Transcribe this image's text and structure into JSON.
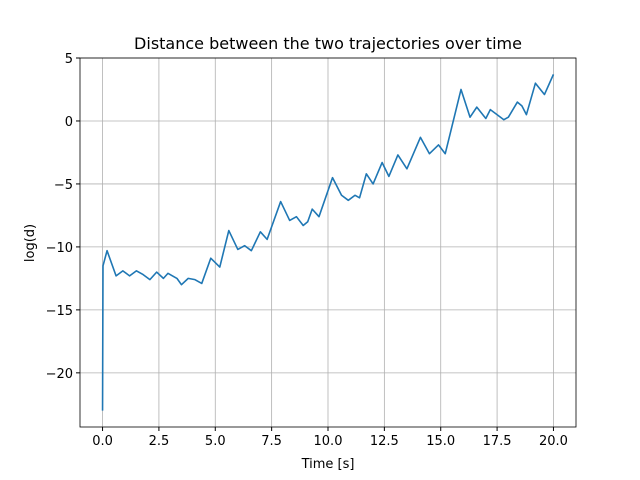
{
  "chart_data": {
    "type": "line",
    "title": "Distance between the two trajectories over time",
    "xlabel": "Time [s]",
    "ylabel": "log(d)",
    "x": [
      0,
      0.02,
      0.2,
      0.6,
      0.9,
      1.2,
      1.5,
      1.8,
      2.1,
      2.4,
      2.7,
      2.9,
      3.3,
      3.5,
      3.8,
      4.1,
      4.4,
      4.8,
      5.2,
      5.6,
      6.0,
      6.3,
      6.6,
      7.0,
      7.3,
      7.9,
      8.3,
      8.6,
      8.9,
      9.1,
      9.3,
      9.6,
      10.2,
      10.6,
      10.9,
      11.2,
      11.4,
      11.7,
      12.0,
      12.4,
      12.7,
      13.1,
      13.5,
      14.1,
      14.5,
      14.9,
      15.2,
      15.9,
      16.3,
      16.6,
      17.0,
      17.2,
      17.8,
      18.0,
      18.4,
      18.6,
      18.8,
      19.2,
      19.6,
      20.0
    ],
    "series": [
      {
        "color": "#1f77b4",
        "values": [
          -23,
          -11.5,
          -10.3,
          -12.3,
          -11.9,
          -12.3,
          -11.9,
          -12.2,
          -12.6,
          -12.0,
          -12.5,
          -12.1,
          -12.5,
          -13.0,
          -12.5,
          -12.6,
          -12.9,
          -10.9,
          -11.6,
          -8.7,
          -10.2,
          -9.9,
          -10.3,
          -8.8,
          -9.4,
          -6.4,
          -7.9,
          -7.6,
          -8.3,
          -8.0,
          -7.0,
          -7.6,
          -4.5,
          -5.9,
          -6.3,
          -5.9,
          -6.1,
          -4.2,
          -5.0,
          -3.3,
          -4.4,
          -2.7,
          -3.8,
          -1.3,
          -2.6,
          -1.9,
          -2.6,
          2.5,
          0.3,
          1.1,
          0.2,
          0.9,
          0.1,
          0.3,
          1.5,
          1.2,
          0.5,
          3.0,
          2.1,
          3.7
        ]
      }
    ],
    "xlim": [
      -1,
      21
    ],
    "ylim": [
      -24.3,
      5.0
    ],
    "xticks": [
      {
        "value": 0,
        "label": "0.0"
      },
      {
        "value": 2.5,
        "label": "2.5"
      },
      {
        "value": 5,
        "label": "5.0"
      },
      {
        "value": 7.5,
        "label": "7.5"
      },
      {
        "value": 10,
        "label": "10.0"
      },
      {
        "value": 12.5,
        "label": "12.5"
      },
      {
        "value": 15,
        "label": "15.0"
      },
      {
        "value": 17.5,
        "label": "17.5"
      },
      {
        "value": 20,
        "label": "20.0"
      }
    ],
    "yticks": [
      5,
      0,
      {
        "value": -5,
        "label": "−5"
      },
      {
        "value": -10,
        "label": "−10"
      },
      {
        "value": -15,
        "label": "−15"
      },
      {
        "value": -20,
        "label": "−20"
      }
    ],
    "grid": true
  }
}
